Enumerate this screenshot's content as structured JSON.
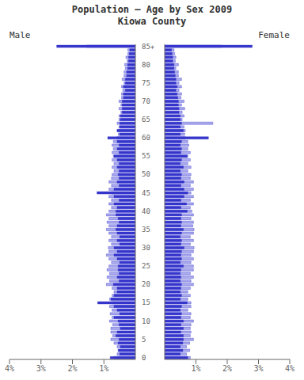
{
  "chart_data": {
    "type": "bar",
    "orientation": "horizontal",
    "title": "Population — Age by Sex 2009",
    "subtitle": "Kiowa County",
    "grid": false,
    "categories": [
      "0",
      null,
      null,
      null,
      null,
      "5",
      null,
      null,
      null,
      null,
      "10",
      null,
      null,
      null,
      null,
      "15",
      null,
      null,
      null,
      null,
      "20",
      null,
      null,
      null,
      null,
      "25",
      null,
      null,
      null,
      null,
      "30",
      null,
      null,
      null,
      null,
      "35",
      null,
      null,
      null,
      null,
      "40",
      null,
      null,
      null,
      null,
      "45",
      null,
      null,
      null,
      null,
      "50",
      null,
      null,
      null,
      null,
      "55",
      null,
      null,
      null,
      null,
      "60",
      null,
      null,
      null,
      null,
      "65",
      null,
      null,
      null,
      null,
      "70",
      null,
      null,
      null,
      null,
      "75",
      null,
      null,
      null,
      null,
      "80",
      null,
      null,
      null,
      null,
      "85+"
    ],
    "xlim": [
      0,
      4.0
    ],
    "xticks": [
      {
        "value": 1,
        "label": "1%"
      },
      {
        "value": 2,
        "label": "2%"
      },
      {
        "value": 3,
        "label": "3%"
      },
      {
        "value": 4,
        "label": "4%"
      }
    ],
    "series": [
      {
        "name": "Male",
        "color": "#aaaaee",
        "values": [
          0.68,
          0.58,
          0.52,
          0.58,
          0.68,
          0.78,
          0.72,
          0.78,
          0.78,
          0.72,
          0.82,
          0.74,
          0.8,
          0.74,
          0.82,
          0.74,
          0.82,
          0.74,
          0.68,
          0.74,
          0.92,
          0.82,
          0.9,
          0.82,
          0.9,
          0.84,
          0.76,
          0.84,
          0.92,
          0.84,
          0.86,
          0.76,
          0.84,
          0.76,
          0.84,
          0.92,
          0.84,
          0.9,
          0.84,
          0.92,
          0.84,
          0.76,
          0.84,
          0.76,
          0.84,
          0.76,
          0.84,
          0.76,
          0.84,
          0.76,
          0.74,
          0.68,
          0.74,
          0.68,
          0.74,
          0.7,
          0.74,
          0.7,
          0.74,
          0.7,
          0.58,
          0.54,
          0.58,
          0.52,
          0.58,
          0.52,
          0.52,
          0.46,
          0.52,
          0.46,
          0.52,
          0.44,
          0.44,
          0.4,
          0.44,
          0.36,
          0.42,
          0.36,
          0.36,
          0.32,
          0.34,
          0.26,
          0.3,
          0.24,
          0.24,
          1.55
        ]
      },
      {
        "name": "Male",
        "color": "#3535cc",
        "values": [
          0.8,
          0.5,
          0.55,
          0.48,
          0.55,
          0.52,
          0.62,
          0.58,
          0.48,
          0.52,
          0.55,
          0.68,
          0.5,
          0.58,
          0.68,
          1.2,
          0.78,
          0.68,
          0.58,
          0.58,
          0.7,
          0.52,
          0.58,
          0.52,
          0.55,
          0.55,
          0.5,
          0.58,
          0.68,
          0.58,
          0.68,
          0.5,
          0.58,
          0.5,
          0.58,
          0.62,
          0.58,
          0.52,
          0.55,
          0.62,
          0.62,
          0.58,
          0.68,
          0.52,
          0.68,
          1.22,
          0.68,
          0.52,
          0.58,
          0.52,
          0.55,
          0.52,
          0.58,
          0.52,
          0.58,
          0.68,
          0.52,
          0.58,
          0.52,
          0.58,
          0.88,
          0.5,
          0.58,
          0.5,
          0.5,
          0.48,
          0.48,
          0.42,
          0.42,
          0.42,
          0.42,
          0.38,
          0.38,
          0.32,
          0.38,
          0.32,
          0.32,
          0.28,
          0.28,
          0.25,
          0.25,
          0.22,
          0.22,
          0.2,
          0.18,
          2.5
        ]
      },
      {
        "name": "Female",
        "color": "#aaaaee",
        "values": [
          0.82,
          0.7,
          0.8,
          0.7,
          0.8,
          0.92,
          0.82,
          0.84,
          0.82,
          0.84,
          0.92,
          0.82,
          0.84,
          0.74,
          0.84,
          0.84,
          0.74,
          0.82,
          0.74,
          0.82,
          0.92,
          0.84,
          0.92,
          0.82,
          0.92,
          0.92,
          0.84,
          0.92,
          0.84,
          0.92,
          0.94,
          0.82,
          0.92,
          0.82,
          0.92,
          0.94,
          0.9,
          0.92,
          0.84,
          0.92,
          0.87,
          0.82,
          0.92,
          0.82,
          0.92,
          0.84,
          0.92,
          0.82,
          0.92,
          0.82,
          0.84,
          0.74,
          0.84,
          0.74,
          0.82,
          0.74,
          0.82,
          0.74,
          0.77,
          0.74,
          0.66,
          0.64,
          0.66,
          0.62,
          1.54,
          0.56,
          0.62,
          0.56,
          0.64,
          0.54,
          0.62,
          0.52,
          0.54,
          0.46,
          0.54,
          0.46,
          0.54,
          0.44,
          0.44,
          0.36,
          0.44,
          0.34,
          0.36,
          0.32,
          0.3,
          1.82
        ]
      },
      {
        "name": "Female",
        "color": "#3535cc",
        "values": [
          0.74,
          0.5,
          0.58,
          0.5,
          0.58,
          0.6,
          0.6,
          0.52,
          0.6,
          0.52,
          0.6,
          0.52,
          0.54,
          0.5,
          0.54,
          0.72,
          0.5,
          0.54,
          0.5,
          0.52,
          0.54,
          0.5,
          0.52,
          0.5,
          0.52,
          0.6,
          0.5,
          0.54,
          0.52,
          0.54,
          0.62,
          0.52,
          0.54,
          0.5,
          0.54,
          0.6,
          0.52,
          0.54,
          0.52,
          0.54,
          0.72,
          0.52,
          0.7,
          0.52,
          0.62,
          0.74,
          0.62,
          0.52,
          0.62,
          0.52,
          0.54,
          0.5,
          0.6,
          0.5,
          0.54,
          0.72,
          0.52,
          0.54,
          0.5,
          0.54,
          1.4,
          0.5,
          0.6,
          0.5,
          0.54,
          0.5,
          0.5,
          0.46,
          0.46,
          0.44,
          0.44,
          0.42,
          0.4,
          0.36,
          0.4,
          0.36,
          0.36,
          0.34,
          0.32,
          0.3,
          0.3,
          0.26,
          0.26,
          0.24,
          0.22,
          2.8
        ]
      }
    ]
  }
}
